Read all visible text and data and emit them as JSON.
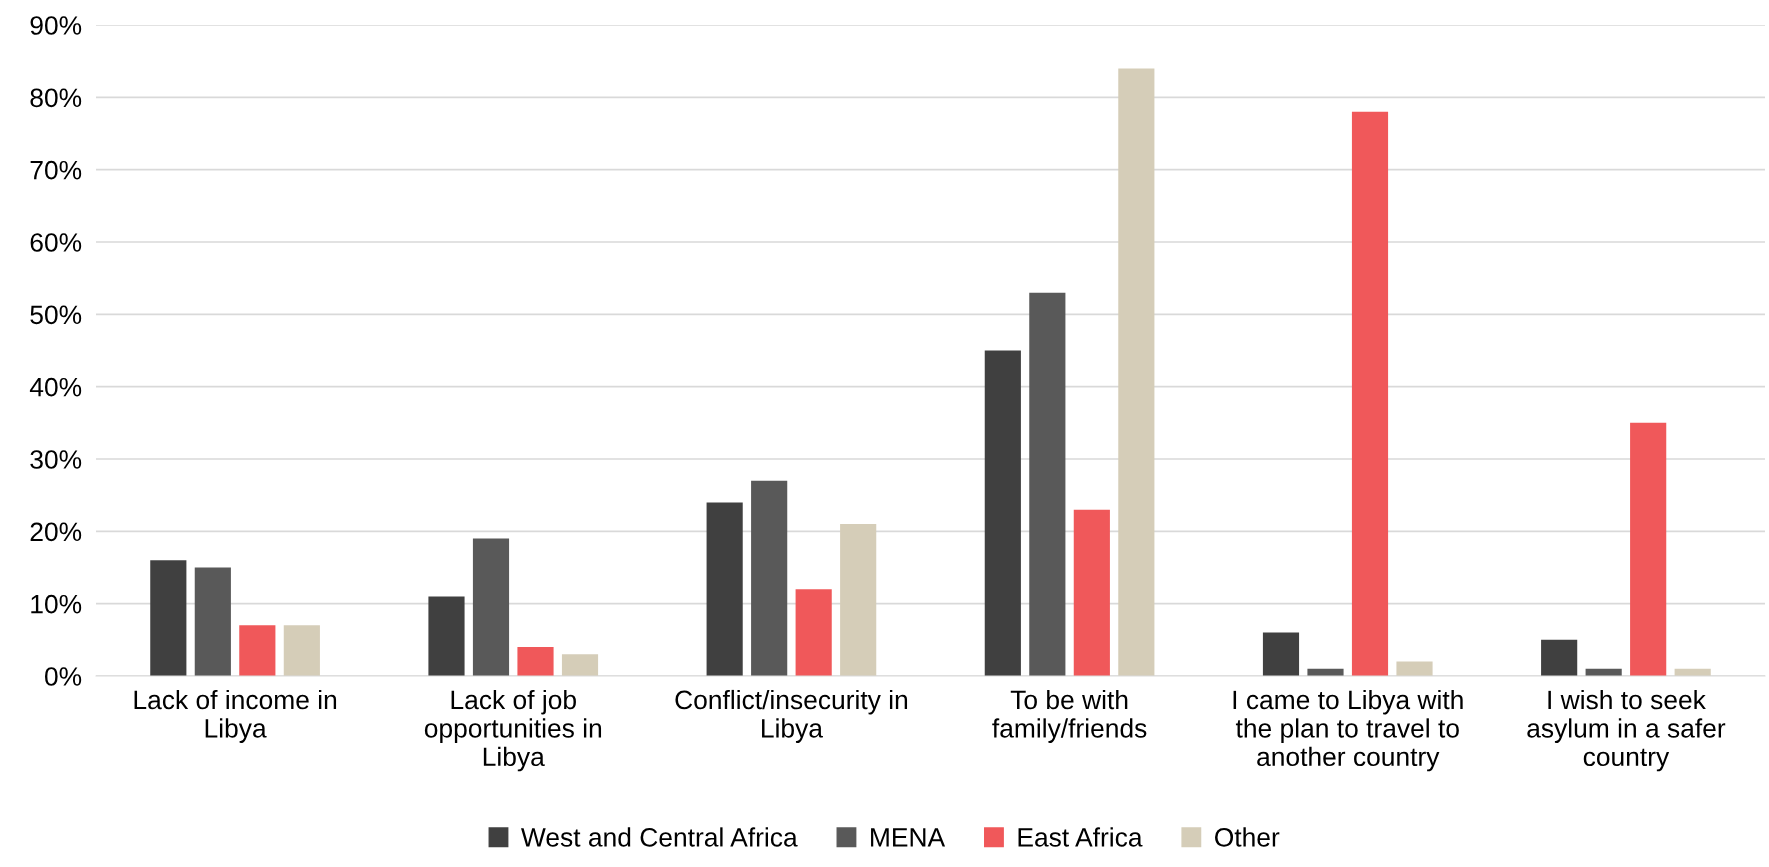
{
  "chart_data": {
    "type": "bar",
    "categories": [
      "Lack of income in\nLibya",
      "Lack of job\nopportunities in\nLibya",
      "Conflict/insecurity in\nLibya",
      "To be with\nfamily/friends",
      "I came to Libya with\nthe plan to travel to\nanother country",
      "I wish to seek\nasylum in a safer\ncountry"
    ],
    "series": [
      {
        "name": "West and Central Africa",
        "color": "#404040",
        "values": [
          16,
          11,
          24,
          45,
          6,
          5
        ]
      },
      {
        "name": "MENA",
        "color": "#595959",
        "values": [
          15,
          19,
          27,
          53,
          1,
          1
        ]
      },
      {
        "name": "East Africa",
        "color": "#f0585a",
        "values": [
          7,
          4,
          12,
          23,
          78,
          35
        ]
      },
      {
        "name": "Other",
        "color": "#d5cdb8",
        "values": [
          7,
          3,
          21,
          84,
          2,
          1
        ]
      }
    ],
    "ylim": [
      0,
      90
    ],
    "yticks": [
      {
        "value": 0,
        "label": "0%"
      },
      {
        "value": 10,
        "label": "10%"
      },
      {
        "value": 20,
        "label": "20%"
      },
      {
        "value": 30,
        "label": "30%"
      },
      {
        "value": 40,
        "label": "40%"
      },
      {
        "value": 50,
        "label": "50%"
      },
      {
        "value": 60,
        "label": "60%"
      },
      {
        "value": 70,
        "label": "70%"
      },
      {
        "value": 80,
        "label": "80%"
      },
      {
        "value": 90,
        "label": "90%"
      }
    ],
    "grid": "y",
    "legend": "bottom"
  }
}
